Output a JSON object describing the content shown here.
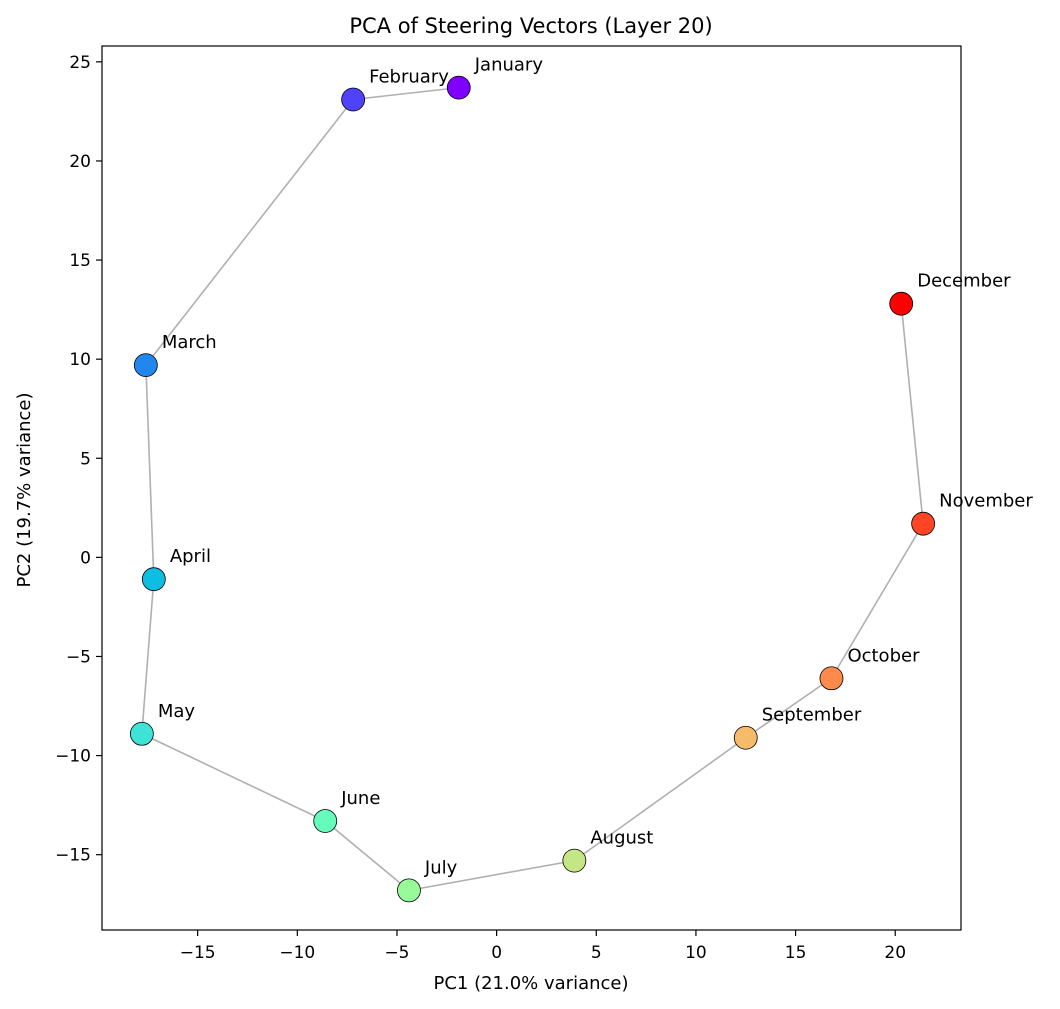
{
  "chart_data": {
    "type": "scatter",
    "title": "PCA of Steering Vectors (Layer 20)",
    "xlabel": "PC1 (21.0% variance)",
    "ylabel": "PC2 (19.7% variance)",
    "xlim": [
      -19.8,
      23.3
    ],
    "ylim": [
      -18.8,
      25.8
    ],
    "xticks": [
      -15,
      -10,
      -5,
      0,
      5,
      10,
      15,
      20
    ],
    "yticks": [
      -15,
      -10,
      -5,
      0,
      5,
      10,
      15,
      20,
      25
    ],
    "xtick_labels": [
      "−15",
      "−10",
      "−5",
      "0",
      "5",
      "10",
      "15",
      "20"
    ],
    "ytick_labels": [
      "−15",
      "−10",
      "−5",
      "0",
      "5",
      "10",
      "15",
      "20",
      "25"
    ],
    "grid": false,
    "legend": "none",
    "connect_points": true,
    "line_color": "#b0b0b0",
    "points": [
      {
        "label": "January",
        "x": -1.9,
        "y": 23.7,
        "color": "#8000ff"
      },
      {
        "label": "February",
        "x": -7.2,
        "y": 23.1,
        "color": "#5042f9"
      },
      {
        "label": "March",
        "x": -17.6,
        "y": 9.7,
        "color": "#2187ed"
      },
      {
        "label": "April",
        "x": -17.2,
        "y": -1.1,
        "color": "#0dbde2"
      },
      {
        "label": "May",
        "x": -17.8,
        "y": -8.9,
        "color": "#3ee3d8"
      },
      {
        "label": "June",
        "x": -8.6,
        "y": -13.3,
        "color": "#64fbbb"
      },
      {
        "label": "July",
        "x": -4.4,
        "y": -16.8,
        "color": "#98fb9a"
      },
      {
        "label": "August",
        "x": 3.9,
        "y": -15.3,
        "color": "#c5e685"
      },
      {
        "label": "September",
        "x": 12.5,
        "y": -9.1,
        "color": "#f5ba6a"
      },
      {
        "label": "October",
        "x": 16.8,
        "y": -6.1,
        "color": "#ff8a4c"
      },
      {
        "label": "November",
        "x": 21.4,
        "y": 1.7,
        "color": "#ff4526"
      },
      {
        "label": "December",
        "x": 20.3,
        "y": 12.8,
        "color": "#ff0000"
      }
    ]
  }
}
